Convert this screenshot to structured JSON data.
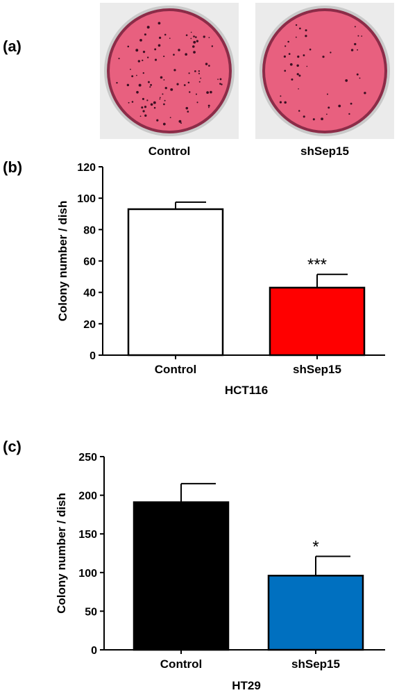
{
  "panel_a": {
    "label": "(a)",
    "dishes": [
      {
        "caption": "Control"
      },
      {
        "caption": "shSep15"
      }
    ],
    "colors": {
      "dish_fill": "#e8607f",
      "dish_edge": "#8c2c48",
      "dish_rim": "#c9c9c9",
      "colony": "#3a0f22"
    }
  },
  "panel_b": {
    "label": "(b)"
  },
  "panel_c": {
    "label": "(c)"
  },
  "chart_data": [
    {
      "type": "bar",
      "panel": "(b)",
      "categories": [
        "Control",
        "shSep15"
      ],
      "values": [
        93,
        43
      ],
      "errors": [
        4.5,
        8.5
      ],
      "significance": [
        "",
        "***"
      ],
      "bar_colors": [
        "#ffffff",
        "#ff0000"
      ],
      "ylabel": "Colony number / dish",
      "xlabel": "HCT116",
      "ylim": [
        0,
        120
      ],
      "yticks": [
        0,
        20,
        40,
        60,
        80,
        100,
        120
      ],
      "grid": false
    },
    {
      "type": "bar",
      "panel": "(c)",
      "categories": [
        "Control",
        "shSep15"
      ],
      "values": [
        191,
        96
      ],
      "errors": [
        24,
        25
      ],
      "significance": [
        "",
        "*"
      ],
      "bar_colors": [
        "#000000",
        "#0070c0"
      ],
      "ylabel": "Colony number / dish",
      "xlabel": "HT29",
      "ylim": [
        0,
        250
      ],
      "yticks": [
        0,
        50,
        100,
        150,
        200,
        250
      ],
      "grid": false
    }
  ]
}
